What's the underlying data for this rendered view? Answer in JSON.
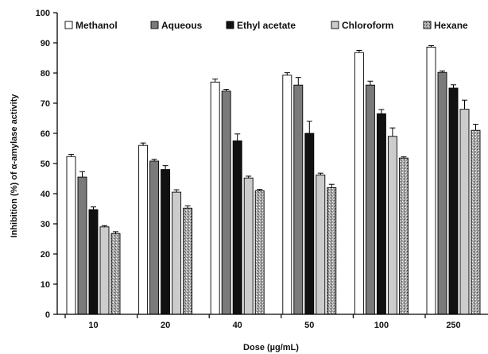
{
  "chart_data": {
    "type": "bar",
    "xlabel": "Dose (µg/mL)",
    "ylabel": "Inhibition (%)  of  α-amylase  activity",
    "ylim": [
      0,
      100
    ],
    "y_ticks": [
      "0",
      "10",
      "20",
      "30",
      "40",
      "50",
      "60",
      "70",
      "80",
      "90",
      "100"
    ],
    "categories": [
      "10",
      "20",
      "40",
      "50",
      "100",
      "250"
    ],
    "grid": false,
    "legend_position": "top",
    "error_bars": true,
    "series": [
      {
        "name": "Methanol",
        "color": "#ffffff",
        "pattern": "none",
        "values": [
          52.3,
          56.0,
          77.0,
          79.3,
          86.8,
          88.6
        ],
        "errors": [
          0.7,
          0.8,
          1.0,
          0.8,
          0.7,
          0.5
        ]
      },
      {
        "name": "Aqueous",
        "color": "#7a7a7a",
        "pattern": "none",
        "values": [
          45.5,
          50.8,
          74.0,
          76.0,
          76.0,
          80.2
        ],
        "errors": [
          1.8,
          0.6,
          0.6,
          2.5,
          1.3,
          0.5
        ]
      },
      {
        "name": "Ethyl acetate",
        "color": "#111111",
        "pattern": "none",
        "values": [
          34.7,
          48.0,
          57.5,
          60.0,
          66.5,
          75.0
        ],
        "errors": [
          0.9,
          1.3,
          2.3,
          4.0,
          1.4,
          1.1
        ]
      },
      {
        "name": "Chloroform",
        "color": "#cccccc",
        "pattern": "none",
        "values": [
          29.0,
          40.5,
          45.2,
          46.2,
          59.0,
          68.0
        ],
        "errors": [
          0.4,
          0.8,
          0.6,
          0.6,
          2.8,
          3.0
        ]
      },
      {
        "name": "Hexane",
        "color": "#999999",
        "pattern": "speckle",
        "values": [
          26.8,
          35.2,
          41.0,
          42.0,
          51.8,
          61.0
        ],
        "errors": [
          0.6,
          0.8,
          0.4,
          1.1,
          0.4,
          2.0
        ]
      }
    ]
  }
}
